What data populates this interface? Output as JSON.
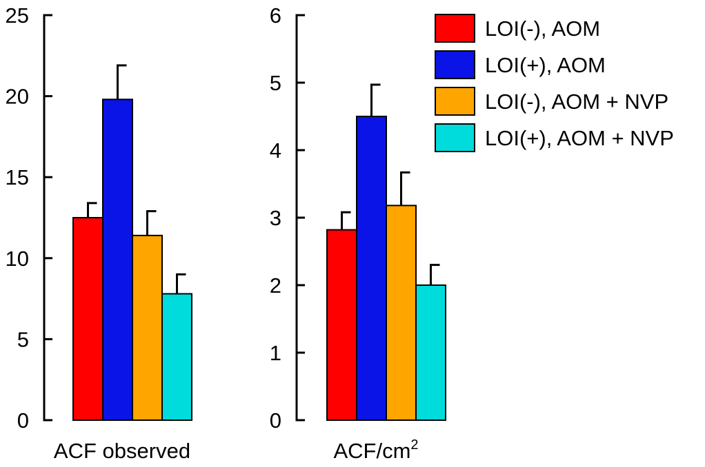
{
  "chart_data": [
    {
      "type": "bar",
      "xlabel": "ACF observed",
      "ylim": [
        0,
        25
      ],
      "yticks": [
        0,
        5,
        10,
        15,
        20,
        25
      ],
      "grid": false,
      "series": [
        {
          "name": "LOI(-), AOM",
          "value": 12.5,
          "error": 0.9,
          "color": "#ff0000"
        },
        {
          "name": "LOI(+), AOM",
          "value": 19.8,
          "error": 2.1,
          "color": "#0a14e6"
        },
        {
          "name": "LOI(-), AOM + NVP",
          "value": 11.4,
          "error": 1.5,
          "color": "#ffa500"
        },
        {
          "name": "LOI(+), AOM + NVP",
          "value": 7.8,
          "error": 1.2,
          "color": "#00dcdc"
        }
      ]
    },
    {
      "type": "bar",
      "xlabel": "ACF/cm",
      "xlabel_superscript": "2",
      "ylim": [
        0,
        6
      ],
      "yticks": [
        0,
        1,
        2,
        3,
        4,
        5,
        6
      ],
      "grid": false,
      "series": [
        {
          "name": "LOI(-), AOM",
          "value": 2.82,
          "error": 0.26,
          "color": "#ff0000"
        },
        {
          "name": "LOI(+), AOM",
          "value": 4.5,
          "error": 0.47,
          "color": "#0a14e6"
        },
        {
          "name": "LOI(-), AOM + NVP",
          "value": 3.18,
          "error": 0.49,
          "color": "#ffa500"
        },
        {
          "name": "LOI(+), AOM + NVP",
          "value": 2.0,
          "error": 0.3,
          "color": "#00dcdc"
        }
      ]
    }
  ],
  "legend": {
    "placement": "top-right",
    "entries": [
      {
        "label": "LOI(-), AOM",
        "color": "#ff0000"
      },
      {
        "label": "LOI(+), AOM",
        "color": "#0a14e6"
      },
      {
        "label": "LOI(-), AOM + NVP",
        "color": "#ffa500"
      },
      {
        "label": "LOI(+), AOM + NVP",
        "color": "#00dcdc"
      }
    ]
  }
}
